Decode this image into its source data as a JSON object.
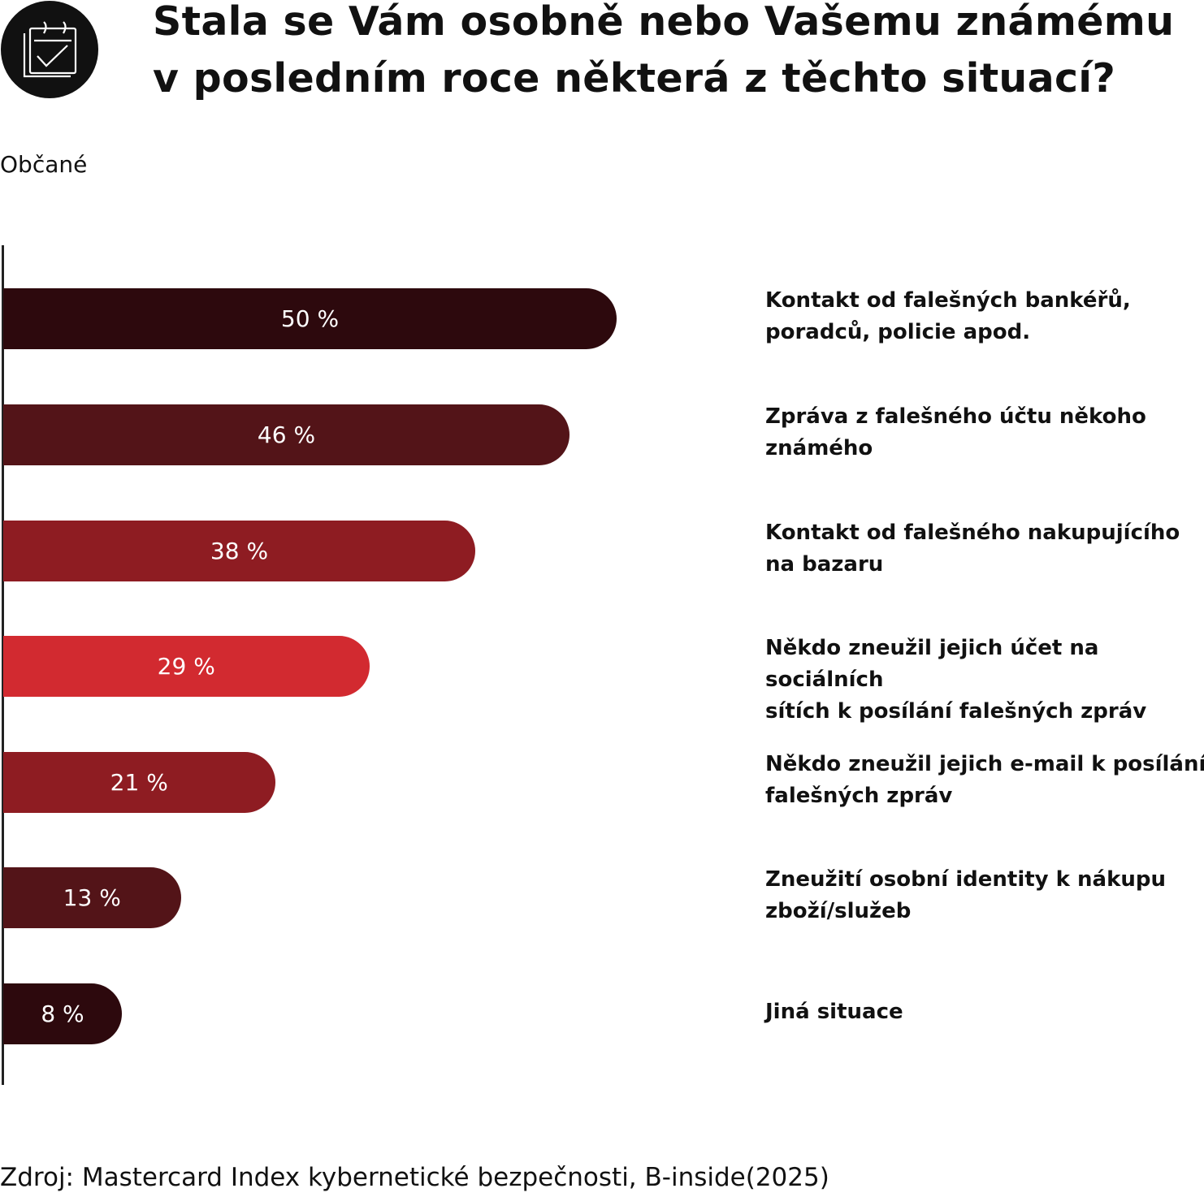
{
  "title": [
    "Stala se Vám osobně nebo Vašemu známému",
    "v posledním roce některá z těchto situací?"
  ],
  "subtitle": "Občané",
  "source": "Zdroj: Mastercard Index kybernetické bezpečnosti, B-inside(2025)",
  "icon": "calendar-check-icon",
  "chart_data": {
    "type": "bar",
    "orientation": "horizontal",
    "categories": [
      "Kontakt od falešných bankéřů, poradců, policie apod.",
      "Zpráva z falešného účtu někoho známého",
      "Kontakt od falešného nakupujícího na bazaru",
      "Někdo zneužil jejich účet na sociálních sítích k posílání falešných zpráv",
      "Někdo zneužil jejich e-mail k posílání falešných zpráv",
      "Zneužití osobní identity k nákupu zboží/služeb",
      "Jiná situace"
    ],
    "category_lines": [
      [
        "Kontakt od falešných bankéřů,",
        "poradců, policie apod."
      ],
      [
        "Zpráva z falešného účtu někoho",
        "známého"
      ],
      [
        "Kontakt od falešného nakupujícího",
        "na bazaru"
      ],
      [
        "Někdo zneužil jejich účet na sociálních",
        "sítích k posílání falešných zpráv"
      ],
      [
        "Někdo zneužil jejich e-mail k posílání",
        "falešných zpráv"
      ],
      [
        "Zneužití osobní identity k nákupu",
        "zboží/služeb"
      ],
      [
        "Jiná situace"
      ]
    ],
    "values": [
      50,
      46,
      38,
      29,
      21,
      13,
      8
    ],
    "data_labels": [
      "50 %",
      "46 %",
      "38 %",
      "29 %",
      "21 %",
      "13 %",
      "8 %"
    ],
    "colors": [
      "#2d090d",
      "#531418",
      "#8e1c22",
      "#d22a30",
      "#8e1c22",
      "#531418",
      "#2d090d"
    ],
    "unit": "%",
    "grid": false,
    "legend": "none"
  }
}
